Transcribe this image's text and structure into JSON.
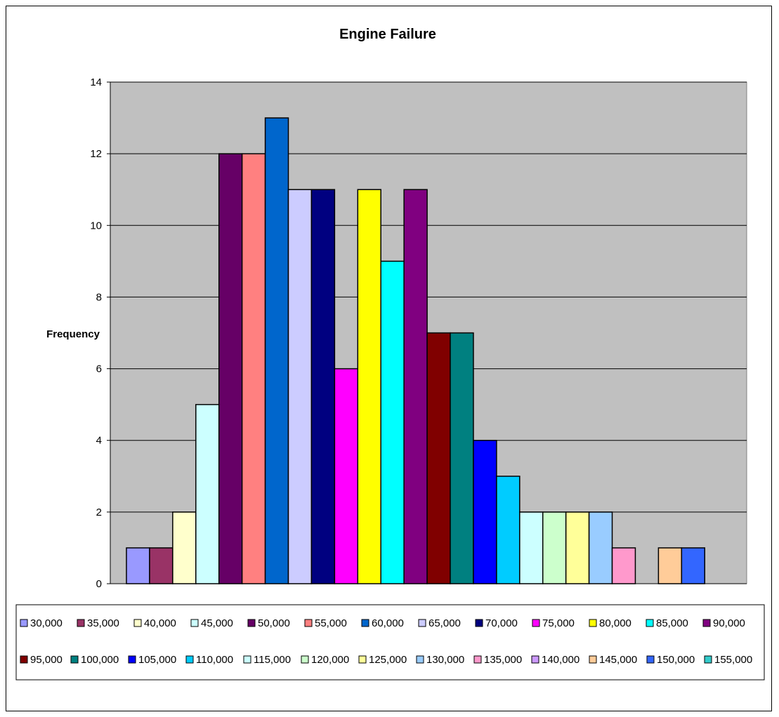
{
  "chart_data": {
    "type": "bar",
    "title": "Engine Failure",
    "ylabel": "Frequency",
    "xlabel": "",
    "ylim": [
      0,
      14
    ],
    "yticks": [
      0,
      2,
      4,
      6,
      8,
      10,
      12,
      14
    ],
    "grid": true,
    "legend_position": "bottom",
    "plot_background": "#c0c0c0",
    "series": [
      {
        "name": "30,000",
        "value": 1,
        "color": "#9999ff"
      },
      {
        "name": "35,000",
        "value": 1,
        "color": "#993366"
      },
      {
        "name": "40,000",
        "value": 2,
        "color": "#ffffcc"
      },
      {
        "name": "45,000",
        "value": 5,
        "color": "#ccffff"
      },
      {
        "name": "50,000",
        "value": 12,
        "color": "#660066"
      },
      {
        "name": "55,000",
        "value": 12,
        "color": "#ff8080"
      },
      {
        "name": "60,000",
        "value": 13,
        "color": "#0066cc"
      },
      {
        "name": "65,000",
        "value": 11,
        "color": "#ccccff"
      },
      {
        "name": "70,000",
        "value": 11,
        "color": "#000080"
      },
      {
        "name": "75,000",
        "value": 6,
        "color": "#ff00ff"
      },
      {
        "name": "80,000",
        "value": 11,
        "color": "#ffff00"
      },
      {
        "name": "85,000",
        "value": 9,
        "color": "#00ffff"
      },
      {
        "name": "90,000",
        "value": 11,
        "color": "#800080"
      },
      {
        "name": "95,000",
        "value": 7,
        "color": "#800000"
      },
      {
        "name": "100,000",
        "value": 7,
        "color": "#008080"
      },
      {
        "name": "105,000",
        "value": 4,
        "color": "#0000ff"
      },
      {
        "name": "110,000",
        "value": 3,
        "color": "#00ccff"
      },
      {
        "name": "115,000",
        "value": 2,
        "color": "#ccffff"
      },
      {
        "name": "120,000",
        "value": 2,
        "color": "#ccffcc"
      },
      {
        "name": "125,000",
        "value": 2,
        "color": "#ffff99"
      },
      {
        "name": "130,000",
        "value": 2,
        "color": "#99ccff"
      },
      {
        "name": "135,000",
        "value": 1,
        "color": "#ff99cc"
      },
      {
        "name": "140,000",
        "value": 0,
        "color": "#cc99ff"
      },
      {
        "name": "145,000",
        "value": 1,
        "color": "#ffcc99"
      },
      {
        "name": "150,000",
        "value": 1,
        "color": "#3366ff"
      },
      {
        "name": "155,000",
        "value": 0,
        "color": "#33cccc"
      }
    ]
  }
}
